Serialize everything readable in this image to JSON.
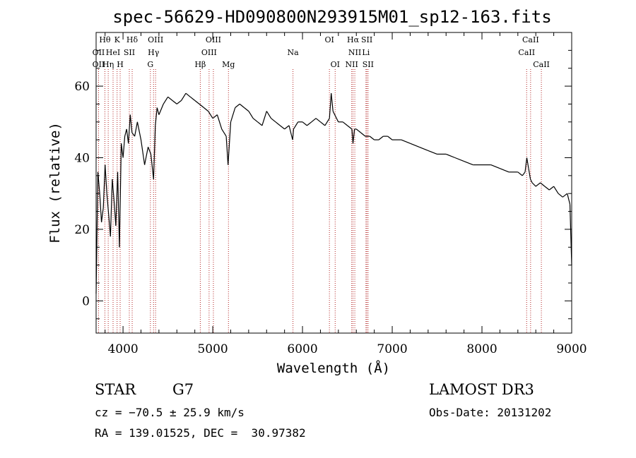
{
  "chart_data": {
    "type": "line",
    "title": "spec-56629-HD090800N293915M01_sp12-163.fits",
    "xlabel": "Wavelength (Å)",
    "ylabel": "Flux (relative)",
    "xlim": [
      3700,
      9000
    ],
    "ylim": [
      -9,
      75
    ],
    "x_ticks": [
      4000,
      5000,
      6000,
      7000,
      8000,
      9000
    ],
    "y_ticks": [
      0,
      20,
      40,
      60
    ],
    "colors": {
      "spectrum": "#000000",
      "lines": "#b22222",
      "frame": "#000000"
    },
    "series": [
      {
        "name": "flux",
        "x": [
          3700,
          3720,
          3740,
          3760,
          3780,
          3800,
          3820,
          3840,
          3860,
          3880,
          3900,
          3920,
          3940,
          3960,
          3980,
          4000,
          4020,
          4040,
          4060,
          4080,
          4100,
          4130,
          4160,
          4200,
          4240,
          4280,
          4310,
          4340,
          4360,
          4380,
          4400,
          4450,
          4500,
          4550,
          4600,
          4650,
          4700,
          4750,
          4800,
          4850,
          4900,
          4950,
          5000,
          5050,
          5100,
          5150,
          5170,
          5185,
          5200,
          5250,
          5300,
          5350,
          5400,
          5450,
          5500,
          5550,
          5600,
          5650,
          5700,
          5750,
          5800,
          5850,
          5890,
          5900,
          5950,
          6000,
          6050,
          6100,
          6150,
          6200,
          6250,
          6300,
          6320,
          6340,
          6400,
          6450,
          6500,
          6550,
          6563,
          6580,
          6600,
          6650,
          6700,
          6750,
          6800,
          6850,
          6900,
          6950,
          7000,
          7100,
          7200,
          7300,
          7400,
          7500,
          7600,
          7700,
          7800,
          7900,
          8000,
          8100,
          8200,
          8300,
          8400,
          8450,
          8480,
          8500,
          8520,
          8540,
          8560,
          8600,
          8650,
          8700,
          8750,
          8800,
          8850,
          8900,
          8950,
          8980,
          9000
        ],
        "values": [
          2,
          36,
          30,
          22,
          26,
          38,
          30,
          24,
          18,
          34,
          28,
          21,
          36,
          15,
          44,
          40,
          46,
          48,
          44,
          52,
          47,
          46,
          50,
          45,
          38,
          43,
          41,
          34,
          49,
          54,
          52,
          55,
          57,
          56,
          55,
          56,
          58,
          57,
          56,
          55,
          54,
          53,
          51,
          52,
          48,
          46,
          38,
          44,
          50,
          54,
          55,
          54,
          53,
          51,
          50,
          49,
          53,
          51,
          50,
          49,
          48,
          49,
          45,
          48,
          50,
          50,
          49,
          50,
          51,
          50,
          49,
          51,
          58,
          53,
          50,
          50,
          49,
          48,
          44,
          48,
          48,
          47,
          46,
          46,
          45,
          45,
          46,
          46,
          45,
          45,
          44,
          43,
          42,
          41,
          41,
          40,
          39,
          38,
          38,
          38,
          37,
          36,
          36,
          35,
          36,
          40,
          37,
          34,
          33,
          32,
          33,
          32,
          31,
          32,
          30,
          29,
          30,
          27,
          10
        ]
      }
    ],
    "line_ids": [
      {
        "label": "Hθ",
        "wavelength": 3798,
        "row": 0
      },
      {
        "label": "OII",
        "wavelength": 3727,
        "row": 1
      },
      {
        "label": "OII",
        "wavelength": 3727,
        "row": 2
      },
      {
        "label": "HeI",
        "wavelength": 3889,
        "row": 1
      },
      {
        "label": "Hη",
        "wavelength": 3835,
        "row": 2
      },
      {
        "label": "K",
        "wavelength": 3934,
        "row": 0
      },
      {
        "label": "H",
        "wavelength": 3968,
        "row": 2
      },
      {
        "label": "SII",
        "wavelength": 4070,
        "row": 1
      },
      {
        "label": "Hδ",
        "wavelength": 4102,
        "row": 0
      },
      {
        "label": "OIII",
        "wavelength": 4363,
        "row": 0
      },
      {
        "label": "Hγ",
        "wavelength": 4340,
        "row": 1
      },
      {
        "label": "G",
        "wavelength": 4305,
        "row": 2
      },
      {
        "label": "Hβ",
        "wavelength": 4861,
        "row": 2
      },
      {
        "label": "OIII",
        "wavelength": 5007,
        "row": 0
      },
      {
        "label": "OIII",
        "wavelength": 4959,
        "row": 1
      },
      {
        "label": "Mg",
        "wavelength": 5175,
        "row": 2
      },
      {
        "label": "Na",
        "wavelength": 5894,
        "row": 1
      },
      {
        "label": "OI",
        "wavelength": 6300,
        "row": 0
      },
      {
        "label": "OI",
        "wavelength": 6364,
        "row": 2
      },
      {
        "label": "Hα",
        "wavelength": 6563,
        "row": 0
      },
      {
        "label": "NII",
        "wavelength": 6583,
        "row": 1
      },
      {
        "label": "NII",
        "wavelength": 6548,
        "row": 2
      },
      {
        "label": "SII",
        "wavelength": 6717,
        "row": 0
      },
      {
        "label": "Li",
        "wavelength": 6707,
        "row": 1
      },
      {
        "label": "SII",
        "wavelength": 6731,
        "row": 2
      },
      {
        "label": "CaII",
        "wavelength": 8542,
        "row": 0
      },
      {
        "label": "CaII",
        "wavelength": 8498,
        "row": 1
      },
      {
        "label": "CaII",
        "wavelength": 8662,
        "row": 2
      }
    ]
  },
  "info": {
    "object_class": "STAR",
    "subclass": "G7",
    "survey": "LAMOST DR3",
    "redshift": "cz = −70.5 ± 25.9 km/s",
    "obs_date": "Obs-Date: 20131202",
    "coords": "RA = 139.01525, DEC =  30.97382"
  }
}
